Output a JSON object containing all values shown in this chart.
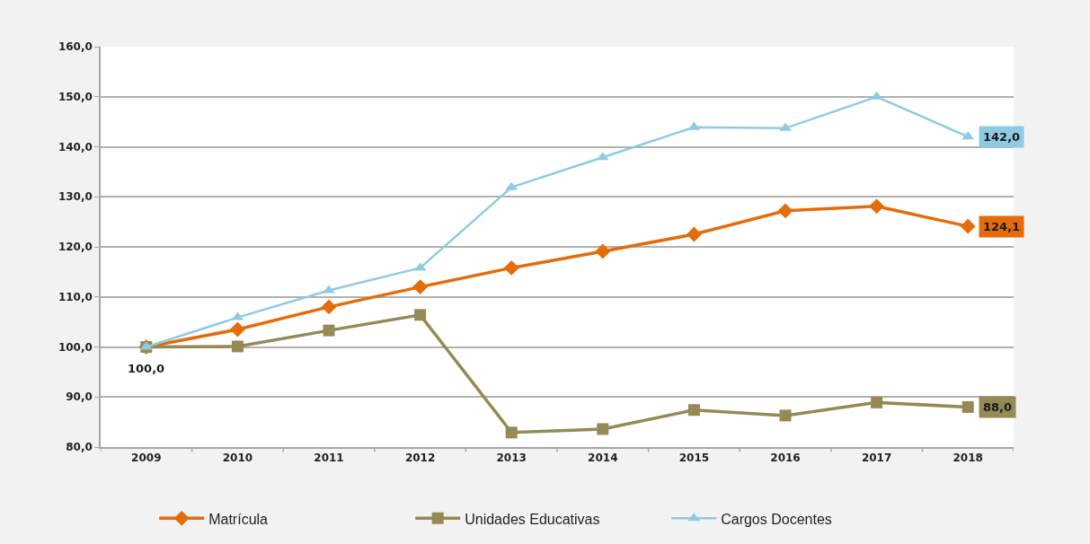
{
  "chart_data": {
    "type": "line",
    "categories": [
      "2009",
      "2010",
      "2011",
      "2012",
      "2013",
      "2014",
      "2015",
      "2016",
      "2017",
      "2018"
    ],
    "series": [
      {
        "name": "Matrícula",
        "color": "#e46c0a",
        "marker": "diamond",
        "values": [
          100.0,
          103.5,
          108.0,
          112.0,
          115.8,
          119.1,
          122.5,
          127.2,
          128.1,
          124.1
        ],
        "value_labels": [
          "100,0",
          null,
          null,
          null,
          null,
          null,
          null,
          null,
          null,
          "124,1"
        ]
      },
      {
        "name": "Unidades Educativas",
        "color": "#948a54",
        "marker": "square",
        "values": [
          100.0,
          100.1,
          103.3,
          106.4,
          82.9,
          83.6,
          87.4,
          86.3,
          88.9,
          88.0
        ],
        "value_labels": [
          null,
          null,
          null,
          null,
          null,
          null,
          null,
          null,
          null,
          "88,0"
        ]
      },
      {
        "name": "Cargos Docentes",
        "color": "#8fcbe0",
        "marker": "triangle",
        "values": [
          100.0,
          105.9,
          111.3,
          115.8,
          131.9,
          137.9,
          143.9,
          143.7,
          150.0,
          142.0
        ],
        "value_labels": [
          null,
          null,
          null,
          null,
          null,
          null,
          null,
          null,
          null,
          "142,0"
        ]
      }
    ],
    "ylim": [
      80,
      160
    ],
    "yticks": [
      {
        "value": 80,
        "label": "80,0"
      },
      {
        "value": 90,
        "label": "90,0"
      },
      {
        "value": 100,
        "label": "100,0"
      },
      {
        "value": 110,
        "label": "110,0"
      },
      {
        "value": 120,
        "label": "120,0"
      },
      {
        "value": 130,
        "label": "130,0"
      },
      {
        "value": 140,
        "label": "140,0"
      },
      {
        "value": 150,
        "label": "150,0"
      },
      {
        "value": 160,
        "label": "160,0"
      }
    ],
    "grid": "y",
    "legend": "bottom",
    "line_style": "solid"
  }
}
